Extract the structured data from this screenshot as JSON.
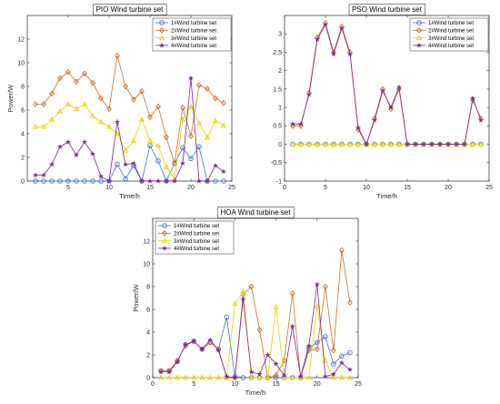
{
  "chart_data": [
    {
      "type": "line",
      "title": "PIO Wind turbine set",
      "xlabel": "Time/h",
      "ylabel": "Power/W",
      "xlim": [
        0,
        25
      ],
      "ylim": [
        0,
        14
      ],
      "xticks": [
        5,
        10,
        15,
        20,
        25
      ],
      "yticks": [
        0,
        2,
        4,
        6,
        8,
        10,
        12
      ],
      "grid": false,
      "legend": "top-right",
      "x": [
        1,
        2,
        3,
        4,
        5,
        6,
        7,
        8,
        9,
        10,
        11,
        12,
        13,
        14,
        15,
        16,
        17,
        18,
        19,
        20,
        21,
        22,
        23,
        24
      ],
      "series": [
        {
          "name": "1#Wind turbine set",
          "color": "#4a6fdc",
          "marker": "circle",
          "values": [
            0,
            0,
            0,
            0,
            0,
            0,
            0,
            0,
            0,
            0,
            1.4,
            0.2,
            1.3,
            0,
            3.0,
            1.7,
            0,
            1.5,
            2.8,
            1.9,
            2.9,
            0,
            0,
            0
          ]
        },
        {
          "name": "2#Wind turbine set",
          "color": "#c8702a",
          "marker": "diamond",
          "values": [
            6.5,
            6.5,
            7.4,
            8.7,
            9.2,
            8.4,
            9.1,
            8.3,
            7.0,
            6.1,
            10.6,
            8.0,
            6.9,
            7.6,
            5.4,
            6.3,
            3.7,
            1.5,
            6.2,
            3.8,
            8.1,
            7.8,
            7.0,
            6.6
          ]
        },
        {
          "name": "3#Wind turbine set",
          "color": "#e3d400",
          "marker": "triangle",
          "values": [
            4.6,
            4.6,
            5.2,
            5.9,
            6.5,
            6.1,
            6.5,
            5.5,
            5.0,
            4.6,
            4.0,
            2.6,
            3.4,
            5.2,
            3.4,
            3.0,
            1.2,
            0.2,
            5.2,
            6.3,
            4.9,
            3.7,
            5.1,
            4.7
          ]
        },
        {
          "name": "4#Wind turbine set",
          "color": "#7a2a8c",
          "marker": "star",
          "values": [
            0.5,
            0.5,
            1.4,
            2.9,
            3.3,
            2.2,
            3.3,
            2.3,
            0.4,
            0,
            5.0,
            1.4,
            1.5,
            0,
            0,
            0,
            0,
            0,
            1.5,
            8.7,
            0,
            0,
            1.3,
            0.8
          ]
        }
      ]
    },
    {
      "type": "line",
      "title": "PSO Wind turbine set",
      "xlabel": "Time/h",
      "ylabel": "",
      "xlim": [
        0,
        25
      ],
      "ylim": [
        -1,
        3.5
      ],
      "xticks": [
        0,
        5,
        10,
        15,
        20,
        25
      ],
      "yticks": [
        -1,
        -0.5,
        0,
        0.5,
        1,
        1.5,
        2,
        2.5,
        3
      ],
      "grid": false,
      "legend": "top-right",
      "x": [
        1,
        2,
        3,
        4,
        5,
        6,
        7,
        8,
        9,
        10,
        11,
        12,
        13,
        14,
        15,
        16,
        17,
        18,
        19,
        20,
        21,
        22,
        23,
        24
      ],
      "series": [
        {
          "name": "1#Wind turbine set",
          "color": "#4a6fdc",
          "marker": "circle",
          "values": [
            0,
            0,
            0,
            0,
            0,
            0,
            0,
            0,
            0,
            0,
            0,
            0,
            0,
            0,
            0,
            0,
            0,
            0,
            0,
            0,
            0,
            0,
            0,
            0
          ]
        },
        {
          "name": "2#Wind turbine set",
          "color": "#c8702a",
          "marker": "diamond",
          "values": [
            0.5,
            0.5,
            1.4,
            2.9,
            3.3,
            2.5,
            3.2,
            2.5,
            0.4,
            0,
            0.7,
            1.5,
            0.96,
            1.5,
            0,
            0,
            0,
            0,
            0,
            0,
            0,
            0,
            1.2,
            0.7
          ]
        },
        {
          "name": "3#Wind turbine set",
          "color": "#e3d400",
          "marker": "triangle",
          "values": [
            0,
            0,
            0,
            0,
            0,
            0,
            0,
            0,
            0,
            0,
            0,
            0,
            0,
            0,
            0,
            0,
            0,
            0,
            0,
            0,
            0,
            0,
            0,
            0
          ]
        },
        {
          "name": "4#Wind turbine set",
          "color": "#7a2a8c",
          "marker": "star",
          "values": [
            0.55,
            0.55,
            1.35,
            2.85,
            3.25,
            2.45,
            3.15,
            2.45,
            0.45,
            0,
            0.65,
            1.45,
            1.0,
            1.55,
            0,
            0,
            0,
            0,
            0,
            0,
            0,
            0,
            1.25,
            0.65
          ]
        }
      ]
    },
    {
      "type": "line",
      "title": "HOA Wind turbine set",
      "xlabel": "Time/h",
      "ylabel": "Power/W",
      "xlim": [
        0,
        25
      ],
      "ylim": [
        0,
        14
      ],
      "xticks": [
        0,
        5,
        10,
        15,
        20,
        25
      ],
      "yticks": [
        0,
        2,
        4,
        6,
        8,
        10,
        12
      ],
      "grid": false,
      "legend": "top-left",
      "x": [
        1,
        2,
        3,
        4,
        5,
        6,
        7,
        8,
        9,
        10,
        11,
        12,
        13,
        14,
        15,
        16,
        17,
        18,
        19,
        20,
        21,
        22,
        23,
        24
      ],
      "series": [
        {
          "name": "1#Wind turbine set",
          "color": "#4a6fdc",
          "marker": "circle",
          "values": [
            0.6,
            0.6,
            1.4,
            2.9,
            3.2,
            2.5,
            3.1,
            2.5,
            5.3,
            0.1,
            0,
            0,
            0,
            0,
            0,
            0,
            0,
            0,
            2.6,
            3.1,
            3.6,
            1.2,
            1.9,
            2.2
          ]
        },
        {
          "name": "2#Wind turbine set",
          "color": "#c8702a",
          "marker": "diamond",
          "values": [
            0.6,
            0.6,
            1.5,
            2.8,
            3.2,
            2.5,
            3.1,
            2.5,
            0,
            0,
            7.3,
            8.0,
            4.2,
            0,
            0.2,
            1.5,
            7.4,
            0,
            2.4,
            2.5,
            8.0,
            2.4,
            11.2,
            6.6
          ]
        },
        {
          "name": "3#Wind turbine set",
          "color": "#e3d400",
          "marker": "triangle",
          "values": [
            0,
            0,
            0,
            0,
            0,
            0,
            0,
            0,
            0,
            6.5,
            7.6,
            0,
            0,
            0,
            6.2,
            0,
            0,
            0,
            0,
            6.3,
            1.5,
            0,
            0,
            0
          ]
        },
        {
          "name": "4#Wind turbine set",
          "color": "#7a2a8c",
          "marker": "star",
          "values": [
            0.5,
            0.5,
            1.4,
            2.9,
            3.2,
            2.5,
            3.3,
            2.4,
            0.1,
            0,
            6.9,
            0.5,
            0.3,
            2.0,
            1.2,
            0.2,
            4.5,
            0.1,
            2.8,
            8.2,
            0.1,
            0.3,
            1.3,
            0.7
          ]
        }
      ]
    }
  ]
}
